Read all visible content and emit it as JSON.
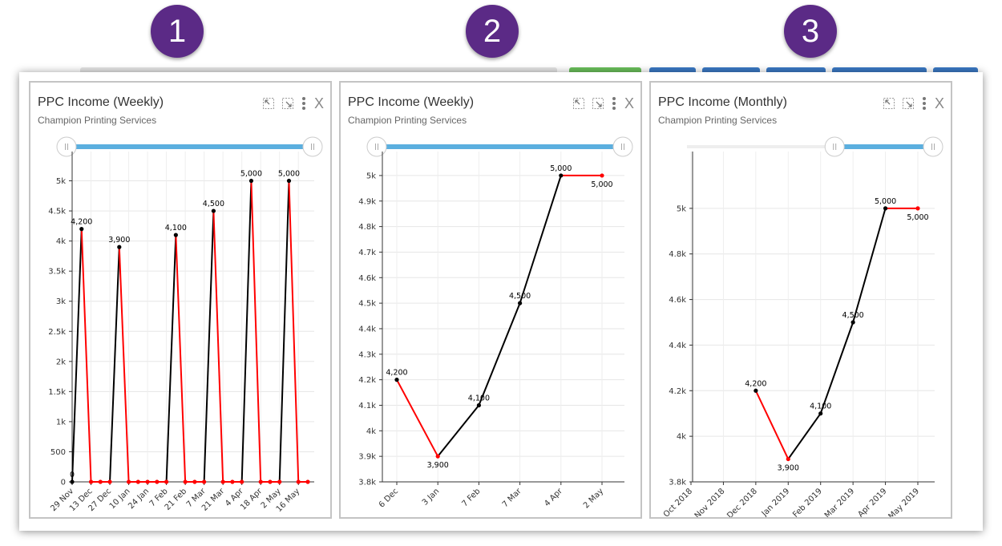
{
  "badges": [
    "1",
    "2",
    "3"
  ],
  "colors": {
    "badge": "#5b2a86",
    "up_line": "#000000",
    "down_line": "#ff0000",
    "slider_track": "#5bafdf",
    "top_bar_green": "#6abf5a",
    "top_bar_blue": "#3a78c3"
  },
  "icons": [
    "shrink-icon",
    "expand-icon",
    "more-vertical-icon",
    "close-icon"
  ],
  "panels": [
    {
      "title": "PPC Income (Weekly)",
      "subtitle": "Champion Printing Services",
      "close_label": "X"
    },
    {
      "title": "PPC Income (Weekly)",
      "subtitle": "Champion Printing Services",
      "close_label": "X"
    },
    {
      "title": "PPC Income (Monthly)",
      "subtitle": "Champion Printing Services",
      "close_label": "X"
    }
  ],
  "chart_data": [
    {
      "type": "line",
      "title": "PPC Income (Weekly)",
      "subtitle": "Champion Printing Services",
      "x_ticks": [
        "29 Nov",
        "13 Dec",
        "27 Dec",
        "10 Jan",
        "24 Jan",
        "7 Feb",
        "21 Feb",
        "7 Mar",
        "21 Mar",
        "4 Apr",
        "18 Apr",
        "2 May",
        "16 May"
      ],
      "y_ticks": [
        "0",
        "500",
        "1k",
        "1.5k",
        "2k",
        "2.5k",
        "3k",
        "3.5k",
        "4k",
        "4.5k",
        "5k"
      ],
      "ylim": [
        0,
        5300
      ],
      "x_index_range": [
        0,
        25
      ],
      "x_index": [
        0,
        1,
        2,
        3,
        4,
        5,
        6,
        7,
        8,
        9,
        10,
        11,
        12,
        13,
        14,
        15,
        16,
        17,
        18,
        19,
        20,
        21,
        22,
        23,
        24,
        25
      ],
      "values": [
        0,
        4200,
        0,
        0,
        0,
        3900,
        0,
        0,
        0,
        0,
        0,
        4100,
        0,
        0,
        0,
        4500,
        0,
        0,
        0,
        5000,
        0,
        0,
        0,
        5000,
        0,
        0
      ],
      "data_labels": [
        {
          "index": 0,
          "text": "0"
        },
        {
          "index": 1,
          "text": "4,200"
        },
        {
          "index": 5,
          "text": "3,900"
        },
        {
          "index": 11,
          "text": "4,100"
        },
        {
          "index": 15,
          "text": "4,500"
        },
        {
          "index": 19,
          "text": "5,000"
        },
        {
          "index": 23,
          "text": "5,000"
        }
      ],
      "range_slider": [
        0,
        1
      ],
      "grid": true
    },
    {
      "type": "line",
      "title": "PPC Income (Weekly)",
      "subtitle": "Champion Printing Services",
      "categories": [
        "6 Dec",
        "3 Jan",
        "7 Feb",
        "7 Mar",
        "4 Apr",
        "2 May"
      ],
      "x_ticks": [
        "6 Dec",
        "3 Jan",
        "7 Feb",
        "7 Mar",
        "4 Apr",
        "2 May"
      ],
      "y_ticks": [
        "3.8k",
        "3.9k",
        "4k",
        "4.1k",
        "4.2k",
        "4.3k",
        "4.4k",
        "4.5k",
        "4.6k",
        "4.7k",
        "4.8k",
        "4.9k",
        "5k"
      ],
      "ylim": [
        3800,
        5050
      ],
      "values": [
        4200,
        3900,
        4100,
        4500,
        5000,
        5000
      ],
      "data_labels": [
        "4,200",
        "3,900",
        "4,100",
        "4,500",
        "5,000",
        "5,000"
      ],
      "range_slider": [
        0,
        1
      ],
      "grid": true
    },
    {
      "type": "line",
      "title": "PPC Income (Monthly)",
      "subtitle": "Champion Printing Services",
      "categories": [
        "Oct 2018",
        "Nov 2018",
        "Dec 2018",
        "Jan 2019",
        "Feb 2019",
        "Mar 2019",
        "Apr 2019",
        "May 2019"
      ],
      "x_ticks": [
        "Oct 2018",
        "Nov 2018",
        "Dec 2018",
        "Jan 2019",
        "Feb 2019",
        "Mar 2019",
        "Apr 2019",
        "May 2019"
      ],
      "y_ticks": [
        "3.8k",
        "4k",
        "4.2k",
        "4.4k",
        "4.6k",
        "4.8k",
        "5k"
      ],
      "ylim": [
        3800,
        5200
      ],
      "values": [
        null,
        null,
        4200,
        3900,
        4100,
        4500,
        5000,
        5000
      ],
      "data_labels": [
        null,
        null,
        "4,200",
        "3,900",
        "4,100",
        "4,500",
        "5,000",
        "5,000"
      ],
      "range_slider": [
        0.6,
        1
      ],
      "grid": true
    }
  ]
}
